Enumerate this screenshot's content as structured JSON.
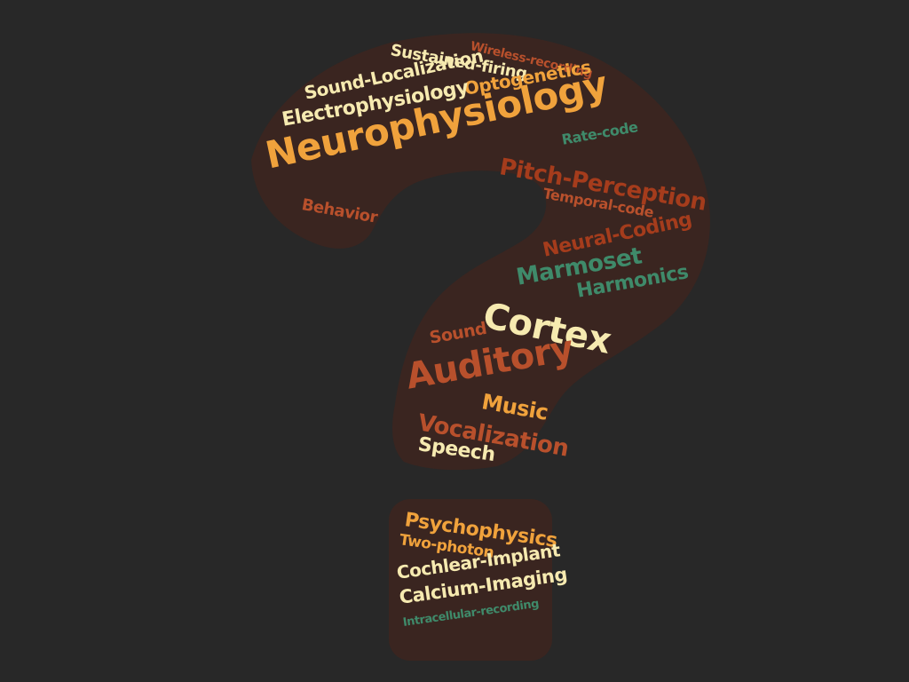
{
  "colors": {
    "background": "#282828",
    "shape": "#3a2520",
    "cream": "#f6eab0",
    "orange": "#f0a23c",
    "rust": "#b8502c",
    "dark_rust": "#a53c1c",
    "teal": "#3f8a6a"
  },
  "words": {
    "sustained_firing": "Sustained-firing",
    "wireless_recording": "Wireless-recording",
    "sound_localization": "Sound-Localization",
    "optogenetics": "Optogenetics",
    "electrophysiology": "Electrophysiology",
    "neurophysiology": "Neurophysiology",
    "rate_code": "Rate-code",
    "pitch_perception": "Pitch-Perception",
    "temporal_code": "Temporal-code",
    "behavior": "Behavior",
    "neural_coding": "Neural-Coding",
    "marmoset": "Marmoset",
    "harmonics": "Harmonics",
    "cortex": "Cortex",
    "sound": "Sound",
    "auditory": "Auditory",
    "music": "Music",
    "vocalization": "Vocalization",
    "speech": "Speech",
    "psychophysics": "Psychophysics",
    "two_photon": "Two-photon",
    "cochlear_implant": "Cochlear-Implant",
    "calcium_imaging": "Calcium-Imaging",
    "intracellular_recording": "Intracellular-recording"
  }
}
